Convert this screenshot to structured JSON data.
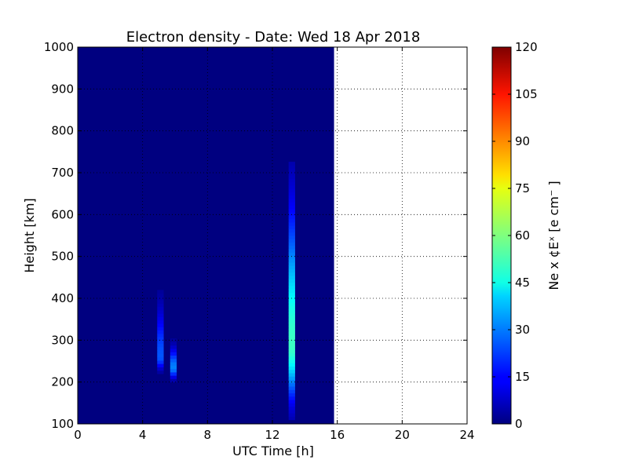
{
  "chart_data": {
    "type": "heatmap",
    "title": "Electron density - Date: Wed 18 Apr 2018",
    "xlabel": "UTC Time [h]",
    "ylabel": "Height [km]",
    "xlim": [
      0,
      24
    ],
    "ylim": [
      100,
      1000
    ],
    "x_ticks": [
      0,
      4,
      8,
      12,
      16,
      20,
      24
    ],
    "y_ticks": [
      100,
      200,
      300,
      400,
      500,
      600,
      700,
      800,
      900,
      1000
    ],
    "grid": true,
    "data_extent_x": [
      0,
      15.8
    ],
    "background_value": 0,
    "colormap": "jet",
    "colorbar": {
      "label": "Ne x ¢Eˣ  [e cm⁻ ]",
      "range": [
        0,
        120
      ],
      "ticks": [
        0,
        15,
        30,
        45,
        60,
        75,
        90,
        105,
        120
      ]
    },
    "features": [
      {
        "time_h": 5.1,
        "height_range_km": [
          220,
          420
        ],
        "peak_height_km": 260,
        "peak_value": 25
      },
      {
        "time_h": 5.9,
        "height_range_km": [
          200,
          300
        ],
        "peak_height_km": 235,
        "peak_value": 30
      },
      {
        "time_h": 13.2,
        "height_range_km": [
          110,
          720
        ],
        "peak_height_km": 290,
        "peak_value": 52
      }
    ]
  }
}
